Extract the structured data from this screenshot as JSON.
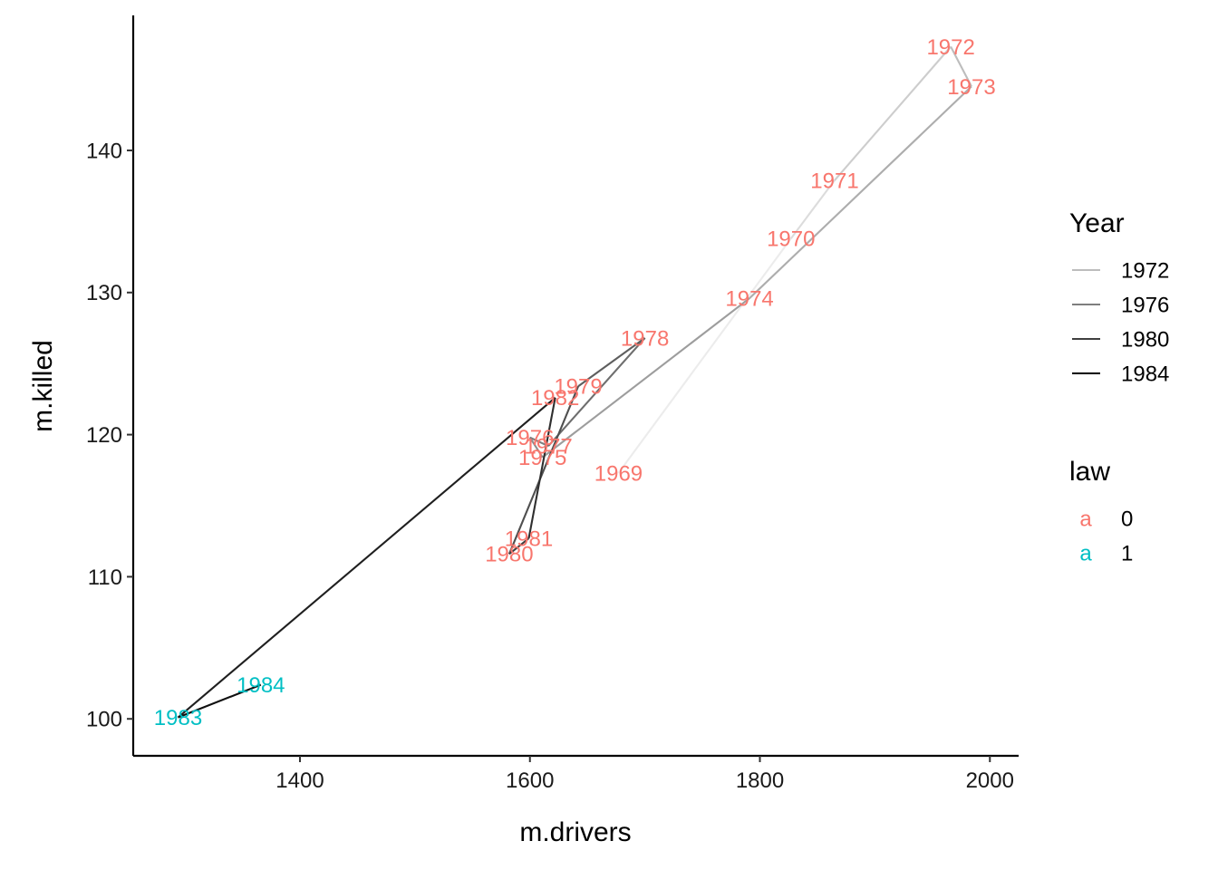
{
  "chart_data": {
    "type": "line",
    "title": "",
    "xlabel": "m.drivers",
    "ylabel": "m.killed",
    "xlim": [
      1255,
      2025
    ],
    "ylim": [
      97.4,
      149.5
    ],
    "x_ticks": [
      1400,
      1600,
      1800,
      2000
    ],
    "y_ticks": [
      100,
      110,
      120,
      130,
      140
    ],
    "grid": false,
    "legend_position": "right",
    "points": [
      {
        "label": "1969",
        "year": 1969,
        "x": 1677,
        "y": 117.3,
        "law": 0
      },
      {
        "label": "1970",
        "year": 1970,
        "x": 1827,
        "y": 133.8,
        "law": 0
      },
      {
        "label": "1971",
        "year": 1971,
        "x": 1865,
        "y": 137.9,
        "law": 0
      },
      {
        "label": "1972",
        "year": 1972,
        "x": 1966,
        "y": 147.3,
        "law": 0
      },
      {
        "label": "1973",
        "year": 1973,
        "x": 1984,
        "y": 144.5,
        "law": 0
      },
      {
        "label": "1974",
        "year": 1974,
        "x": 1791,
        "y": 129.6,
        "law": 0
      },
      {
        "label": "1975",
        "year": 1975,
        "x": 1611,
        "y": 118.4,
        "law": 0
      },
      {
        "label": "1976",
        "year": 1976,
        "x": 1600,
        "y": 119.8,
        "law": 0
      },
      {
        "label": "1977",
        "year": 1977,
        "x": 1616,
        "y": 119.2,
        "law": 0
      },
      {
        "label": "1978",
        "year": 1978,
        "x": 1700,
        "y": 126.8,
        "law": 0
      },
      {
        "label": "1979",
        "year": 1979,
        "x": 1642,
        "y": 123.4,
        "law": 0
      },
      {
        "label": "1980",
        "year": 1980,
        "x": 1582,
        "y": 111.6,
        "law": 0
      },
      {
        "label": "1981",
        "year": 1981,
        "x": 1599,
        "y": 112.7,
        "law": 0
      },
      {
        "label": "1982",
        "year": 1982,
        "x": 1622,
        "y": 122.6,
        "law": 0
      },
      {
        "label": "1983",
        "year": 1983,
        "x": 1294,
        "y": 100.1,
        "law": 1
      },
      {
        "label": "1984",
        "year": 1984,
        "x": 1366,
        "y": 102.4,
        "law": 1
      }
    ],
    "legend": {
      "year": {
        "title": "Year",
        "entries": [
          "1972",
          "1976",
          "1980",
          "1984"
        ]
      },
      "law": {
        "title": "law",
        "key_glyph": "a",
        "entries": [
          "0",
          "1"
        ]
      }
    },
    "colors": {
      "law_0": "#F8766D",
      "law_1": "#00BFC4",
      "year_low": "#ECECEC",
      "year_high": "#000000"
    }
  }
}
